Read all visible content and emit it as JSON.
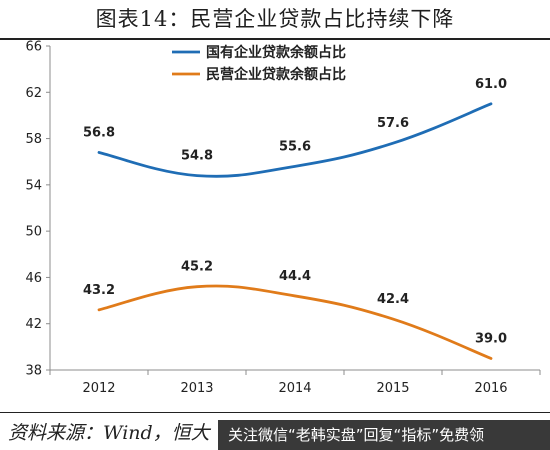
{
  "header": {
    "title": "图表14：民营企业贷款占比持续下降"
  },
  "footer": {
    "source": "资料来源：Wind，恒大",
    "banner": "关注微信“老韩实盘”回复“指标”免费领"
  },
  "colors": {
    "series_1": "#1f6db5",
    "series_2": "#e07b1a",
    "axis": "#8c8c8c",
    "text": "#222222"
  },
  "chart_data": {
    "type": "line",
    "title": "图表14：民营企业贷款占比持续下降",
    "xlabel": "",
    "ylabel": "",
    "categories": [
      "2012",
      "2013",
      "2014",
      "2015",
      "2016"
    ],
    "ylim": [
      38,
      66
    ],
    "yticks": [
      38,
      42,
      46,
      50,
      54,
      58,
      62,
      66
    ],
    "grid": false,
    "legend_position": "top-center",
    "series": [
      {
        "name": "国有企业贷款余额占比",
        "values": [
          56.8,
          54.8,
          55.6,
          57.6,
          61.0
        ],
        "labels": [
          "56.8",
          "54.8",
          "55.6",
          "57.6",
          "61.0"
        ],
        "color": "#1f6db5"
      },
      {
        "name": "民营企业贷款余额占比",
        "values": [
          43.2,
          45.2,
          44.4,
          42.4,
          39.0
        ],
        "labels": [
          "43.2",
          "45.2",
          "44.4",
          "42.4",
          "39.0"
        ],
        "color": "#e07b1a"
      }
    ]
  }
}
